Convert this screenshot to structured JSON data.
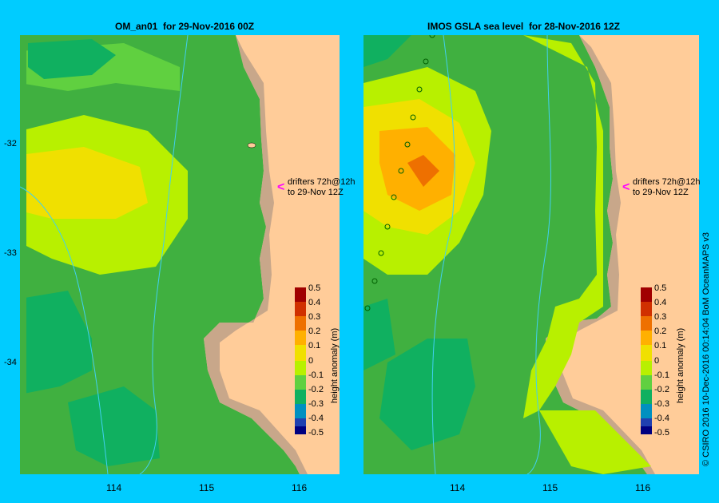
{
  "titles": {
    "left": "OM_an01  for 29-Nov-2016 00Z",
    "right": "IMOS GSLA sea level  for 28-Nov-2016 12Z"
  },
  "y_ticks": [
    "-32",
    "-33",
    "-34"
  ],
  "x_ticks": [
    "114",
    "115",
    "116"
  ],
  "colorbar": {
    "title": "height anomaly (m)",
    "labels": [
      "0.5",
      "0.4",
      "0.3",
      "0.2",
      "0.1",
      "0",
      "-0.1",
      "-0.2",
      "-0.3",
      "-0.4",
      "-0.5"
    ],
    "colors": [
      "#a00000",
      "#d03000",
      "#ee7000",
      "#ffb000",
      "#f0e000",
      "#b8f000",
      "#60d040",
      "#10b060",
      "#0090c0",
      "#2040b0",
      "#000080"
    ]
  },
  "drifters_text": {
    "line1": "drifters 72h@12h",
    "line2": "to 29-Nov 12Z"
  },
  "copyright": "© CSIRO 2016   10-Dec-2016 00:14:04 BoM OceanMAPS v3",
  "colors": {
    "land": "#ffcc99",
    "coast": "#c8a78a",
    "ocean_bg": "#40b040",
    "river": "#40d0f0",
    "arrow": "#ff00ff"
  }
}
